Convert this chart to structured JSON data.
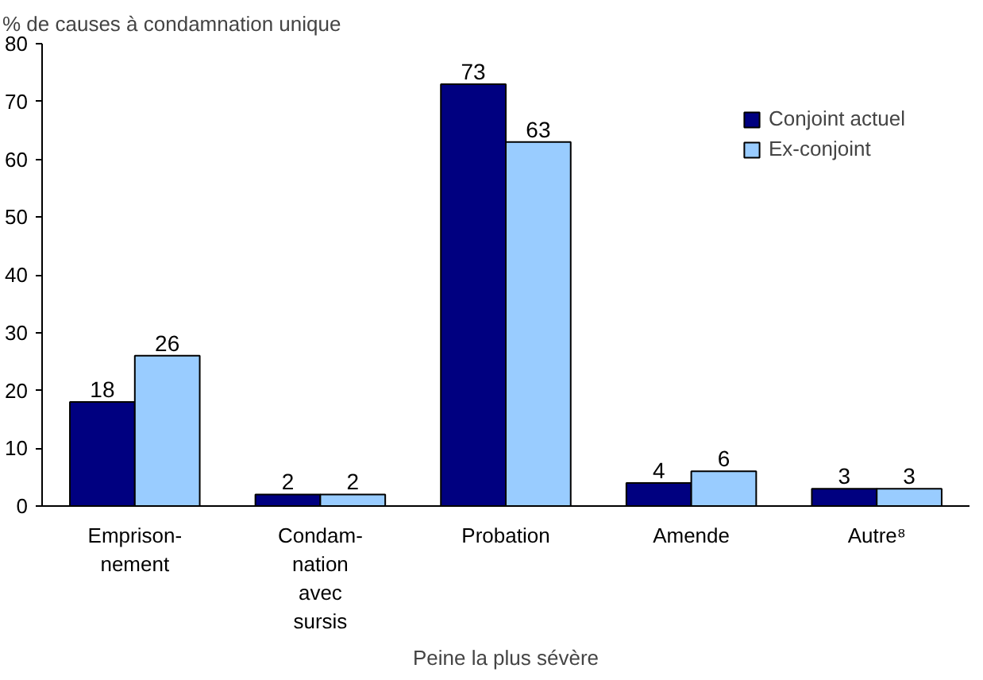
{
  "chart_data": {
    "type": "bar",
    "ylabel": "% de causes à condamnation unique",
    "xlabel": "Peine la plus sévère",
    "categories": [
      "Emprison-\nnement",
      "Condam-\nnation\navec\nsursis",
      "Probation",
      "Amende",
      "Autre⁸"
    ],
    "series": [
      {
        "name": "Conjoint actuel",
        "color": "#000080",
        "values": [
          18,
          2,
          73,
          4,
          3
        ]
      },
      {
        "name": "Ex-conjoint",
        "color": "#99ccff",
        "values": [
          26,
          2,
          63,
          6,
          3
        ]
      }
    ],
    "ylim": [
      0,
      80
    ],
    "yticks": [
      0,
      10,
      20,
      30,
      40,
      50,
      60,
      70,
      80
    ],
    "grid": false,
    "legend": "top right",
    "data_labels": true
  }
}
